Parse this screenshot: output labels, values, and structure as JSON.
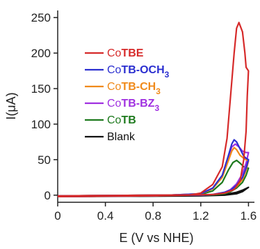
{
  "chart_data": {
    "type": "line",
    "xlabel": "E (V vs NHE)",
    "ylabel": "I(μA)",
    "xlim": [
      0,
      1.65
    ],
    "ylim": [
      -10,
      260
    ],
    "x_ticks": [
      "0",
      "0.4",
      "0.8",
      "1.2",
      "1.6"
    ],
    "y_ticks": [
      "0",
      "50",
      "100",
      "150",
      "200",
      "250"
    ],
    "legend_position": "left",
    "series": [
      {
        "name_prefix": "Co",
        "name_bold": "TBE",
        "name_sub": "",
        "color": "#d62a2a",
        "forward": [
          [
            0,
            -2
          ],
          [
            0.4,
            -1.5
          ],
          [
            0.8,
            -1
          ],
          [
            1.1,
            0
          ],
          [
            1.2,
            3
          ],
          [
            1.3,
            15
          ],
          [
            1.38,
            40
          ],
          [
            1.42,
            80
          ],
          [
            1.45,
            140
          ],
          [
            1.48,
            200
          ],
          [
            1.5,
            235
          ],
          [
            1.52,
            243
          ],
          [
            1.55,
            230
          ],
          [
            1.57,
            200
          ],
          [
            1.58,
            180
          ],
          [
            1.6,
            175
          ]
        ],
        "reverse": [
          [
            1.6,
            175
          ],
          [
            1.59,
            140
          ],
          [
            1.58,
            90
          ],
          [
            1.56,
            50
          ],
          [
            1.53,
            20
          ],
          [
            1.48,
            8
          ],
          [
            1.4,
            3
          ],
          [
            1.3,
            1
          ],
          [
            1.2,
            0.5
          ],
          [
            0.8,
            0
          ],
          [
            0.4,
            -0.5
          ],
          [
            0,
            -1
          ]
        ]
      },
      {
        "name_prefix": "Co",
        "name_bold": "TB-OCH",
        "name_sub": "3",
        "color": "#2b2fd0",
        "forward": [
          [
            0,
            -2
          ],
          [
            0.4,
            -1.5
          ],
          [
            0.8,
            -1
          ],
          [
            1.2,
            2
          ],
          [
            1.3,
            10
          ],
          [
            1.38,
            28
          ],
          [
            1.43,
            55
          ],
          [
            1.46,
            72
          ],
          [
            1.48,
            78
          ],
          [
            1.5,
            75
          ],
          [
            1.53,
            65
          ],
          [
            1.56,
            55
          ],
          [
            1.58,
            52
          ],
          [
            1.6,
            50
          ]
        ],
        "reverse": [
          [
            1.6,
            50
          ],
          [
            1.58,
            38
          ],
          [
            1.55,
            25
          ],
          [
            1.5,
            14
          ],
          [
            1.45,
            7
          ],
          [
            1.4,
            4
          ],
          [
            1.3,
            1
          ],
          [
            1.2,
            0
          ],
          [
            0.8,
            0
          ],
          [
            0,
            -1
          ]
        ]
      },
      {
        "name_prefix": "Co",
        "name_bold": "TB-CH",
        "name_sub": "3",
        "color": "#f08a1a",
        "forward": [
          [
            0,
            -2
          ],
          [
            0.4,
            -1.5
          ],
          [
            0.8,
            -1
          ],
          [
            1.2,
            2
          ],
          [
            1.3,
            9
          ],
          [
            1.38,
            25
          ],
          [
            1.43,
            48
          ],
          [
            1.46,
            62
          ],
          [
            1.48,
            67
          ],
          [
            1.5,
            64
          ],
          [
            1.53,
            56
          ],
          [
            1.56,
            52
          ],
          [
            1.58,
            50
          ],
          [
            1.6,
            48
          ]
        ],
        "reverse": [
          [
            1.6,
            48
          ],
          [
            1.58,
            35
          ],
          [
            1.55,
            22
          ],
          [
            1.5,
            12
          ],
          [
            1.45,
            6
          ],
          [
            1.4,
            3
          ],
          [
            1.3,
            1
          ],
          [
            1.2,
            0
          ],
          [
            0.8,
            0
          ],
          [
            0,
            -1
          ]
        ]
      },
      {
        "name_prefix": "Co",
        "name_bold": "TB-BZ",
        "name_sub": "3",
        "color": "#a030e0",
        "forward": [
          [
            0,
            -2
          ],
          [
            0.4,
            -1.5
          ],
          [
            0.8,
            -1
          ],
          [
            1.2,
            2
          ],
          [
            1.3,
            9
          ],
          [
            1.38,
            26
          ],
          [
            1.43,
            52
          ],
          [
            1.46,
            68
          ],
          [
            1.49,
            72
          ],
          [
            1.52,
            68
          ],
          [
            1.55,
            62
          ],
          [
            1.58,
            60
          ],
          [
            1.6,
            60
          ]
        ],
        "reverse": [
          [
            1.6,
            60
          ],
          [
            1.58,
            45
          ],
          [
            1.55,
            30
          ],
          [
            1.5,
            16
          ],
          [
            1.45,
            8
          ],
          [
            1.4,
            4
          ],
          [
            1.3,
            1
          ],
          [
            1.2,
            0
          ],
          [
            0.8,
            0
          ],
          [
            0,
            -1
          ]
        ]
      },
      {
        "name_prefix": "Co",
        "name_bold": "TB",
        "name_sub": "",
        "color": "#1e7a1e",
        "forward": [
          [
            0,
            -2
          ],
          [
            0.4,
            -1.5
          ],
          [
            0.8,
            -1
          ],
          [
            1.2,
            1
          ],
          [
            1.3,
            6
          ],
          [
            1.38,
            18
          ],
          [
            1.43,
            35
          ],
          [
            1.47,
            46
          ],
          [
            1.5,
            49
          ],
          [
            1.53,
            45
          ],
          [
            1.56,
            40
          ],
          [
            1.58,
            38
          ],
          [
            1.6,
            38
          ]
        ],
        "reverse": [
          [
            1.6,
            38
          ],
          [
            1.58,
            28
          ],
          [
            1.55,
            18
          ],
          [
            1.5,
            10
          ],
          [
            1.45,
            5
          ],
          [
            1.4,
            2
          ],
          [
            1.3,
            0.5
          ],
          [
            1.2,
            0
          ],
          [
            0.8,
            0
          ],
          [
            0,
            -1
          ]
        ]
      },
      {
        "name_prefix": "",
        "name_bold": "",
        "name_sub": "",
        "name_plain": "Blank",
        "color": "#111111",
        "forward": [
          [
            0,
            -2
          ],
          [
            0.4,
            -1.5
          ],
          [
            0.8,
            -1
          ],
          [
            1.2,
            -0.5
          ],
          [
            1.3,
            0
          ],
          [
            1.4,
            1
          ],
          [
            1.5,
            4
          ],
          [
            1.55,
            7
          ],
          [
            1.6,
            11
          ]
        ],
        "reverse": [
          [
            1.6,
            11
          ],
          [
            1.55,
            5
          ],
          [
            1.5,
            2
          ],
          [
            1.4,
            0
          ],
          [
            1.2,
            -1
          ],
          [
            0.8,
            -1.5
          ],
          [
            0,
            -2
          ]
        ]
      }
    ]
  }
}
